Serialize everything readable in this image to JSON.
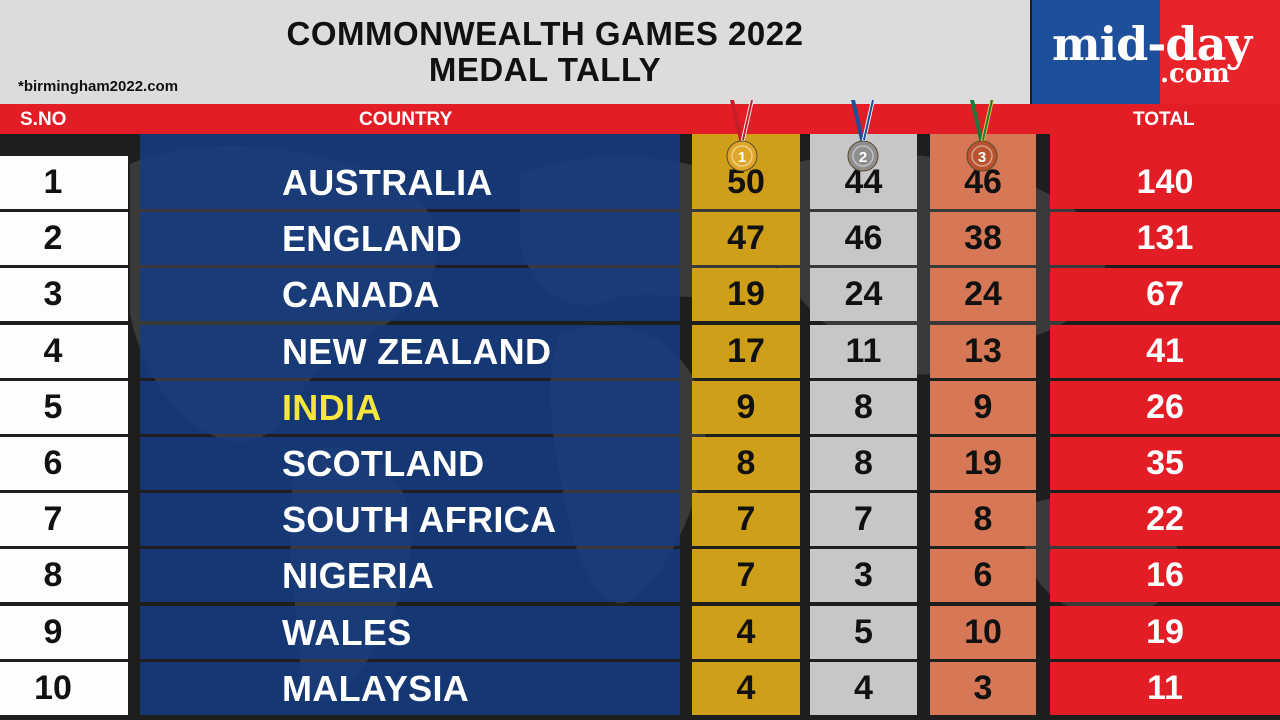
{
  "header": {
    "title_line1": "COMMONWEALTH GAMES 2022",
    "title_line2": "MEDAL TALLY",
    "source": "*birmingham2022.com"
  },
  "logo": {
    "main": "mid-day",
    "sub": ".com"
  },
  "columns": {
    "sno": "S.NO",
    "country": "COUNTRY",
    "total": "TOTAL"
  },
  "medal_icons": [
    {
      "name": "gold-medal-icon",
      "number": "1",
      "color": "#e0a62a"
    },
    {
      "name": "silver-medal-icon",
      "number": "2",
      "color": "#8e8e8e"
    },
    {
      "name": "bronze-medal-icon",
      "number": "3",
      "color": "#b8532e"
    }
  ],
  "colors": {
    "red": "#e31d25",
    "blue": "#143c82",
    "gold": "#cf9f1a",
    "silver": "#c7c7c7",
    "bronze": "#d67856",
    "highlight": "#f6e53c"
  },
  "chart_data": {
    "type": "table",
    "title": "COMMONWEALTH GAMES 2022 MEDAL TALLY",
    "columns": [
      "S.NO",
      "COUNTRY",
      "GOLD",
      "SILVER",
      "BRONZE",
      "TOTAL"
    ],
    "rows": [
      {
        "sno": "1",
        "country": "AUSTRALIA",
        "gold": "50",
        "silver": "44",
        "bronze": "46",
        "total": "140"
      },
      {
        "sno": "2",
        "country": "ENGLAND",
        "gold": "47",
        "silver": "46",
        "bronze": "38",
        "total": "131"
      },
      {
        "sno": "3",
        "country": "CANADA",
        "gold": "19",
        "silver": "24",
        "bronze": "24",
        "total": "67"
      },
      {
        "sno": "4",
        "country": "NEW ZEALAND",
        "gold": "17",
        "silver": "11",
        "bronze": "13",
        "total": "41"
      },
      {
        "sno": "5",
        "country": "INDIA",
        "gold": "9",
        "silver": "8",
        "bronze": "9",
        "total": "26",
        "highlight": true
      },
      {
        "sno": "6",
        "country": "SCOTLAND",
        "gold": "8",
        "silver": "8",
        "bronze": "19",
        "total": "35"
      },
      {
        "sno": "7",
        "country": "SOUTH AFRICA",
        "gold": "7",
        "silver": "7",
        "bronze": "8",
        "total": "22"
      },
      {
        "sno": "8",
        "country": "NIGERIA",
        "gold": "7",
        "silver": "3",
        "bronze": "6",
        "total": "16"
      },
      {
        "sno": "9",
        "country": "WALES",
        "gold": "4",
        "silver": "5",
        "bronze": "10",
        "total": "19"
      },
      {
        "sno": "10",
        "country": "MALAYSIA",
        "gold": "4",
        "silver": "4",
        "bronze": "3",
        "total": "11"
      }
    ]
  }
}
